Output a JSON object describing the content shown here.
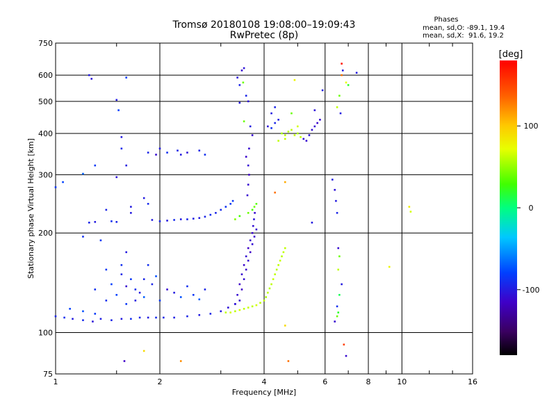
{
  "header": {
    "title_line1": "Tromsø 20180108 19:08:00–19:09:43",
    "title_line2": "RwPretec (8p)"
  },
  "stats": {
    "heading": "Phases",
    "line_o": "mean, sd,O: -89.1, 19.4",
    "line_x": "mean, sd,X:  91.6, 19.2"
  },
  "colorbar": {
    "unit_label": "[deg]",
    "range": [
      -180,
      180
    ],
    "ticks": [
      {
        "value": 100,
        "label": "100"
      },
      {
        "value": 0,
        "label": "0"
      },
      {
        "value": -100,
        "label": "-100"
      }
    ]
  },
  "chart_data": {
    "type": "scatter",
    "xlabel": "Frequency [MHz]",
    "ylabel": "Stationary phase Virtual Height [km]",
    "xscale": "log",
    "yscale": "log",
    "xlim": [
      1,
      16
    ],
    "ylim": [
      75,
      750
    ],
    "grid": true,
    "x_gridlines": [
      2,
      4,
      6,
      8,
      10
    ],
    "y_gridlines": [
      100,
      200,
      300,
      400,
      500,
      600
    ],
    "x_ticks": [
      {
        "value": 1,
        "label": "1"
      },
      {
        "value": 2,
        "label": "2"
      },
      {
        "value": 4,
        "label": "4"
      },
      {
        "value": 6,
        "label": "6"
      },
      {
        "value": 8,
        "label": "8"
      },
      {
        "value": 10,
        "label": "10"
      },
      {
        "value": 16,
        "label": "16"
      }
    ],
    "y_ticks": [
      {
        "value": 75,
        "label": "75"
      },
      {
        "value": 100,
        "label": "100"
      },
      {
        "value": 200,
        "label": "200"
      },
      {
        "value": 300,
        "label": "300"
      },
      {
        "value": 400,
        "label": "400"
      },
      {
        "value": 500,
        "label": "500"
      },
      {
        "value": 600,
        "label": "600"
      },
      {
        "value": 750,
        "label": "750"
      }
    ],
    "points": [
      [
        1.0,
        112,
        -95
      ],
      [
        1.06,
        111,
        -90
      ],
      [
        1.12,
        110,
        -100
      ],
      [
        1.2,
        109,
        -92
      ],
      [
        1.28,
        108,
        -105
      ],
      [
        1.35,
        110,
        -98
      ],
      [
        1.45,
        109,
        -95
      ],
      [
        1.55,
        110,
        -100
      ],
      [
        1.65,
        110,
        -90
      ],
      [
        1.75,
        111,
        -95
      ],
      [
        1.85,
        111,
        -100
      ],
      [
        1.95,
        111,
        -92
      ],
      [
        2.05,
        111,
        -95
      ],
      [
        2.2,
        111,
        -98
      ],
      [
        2.4,
        112,
        -95
      ],
      [
        2.6,
        113,
        -100
      ],
      [
        2.8,
        114,
        -95
      ],
      [
        3.0,
        116,
        -100
      ],
      [
        3.15,
        119,
        -105
      ],
      [
        3.3,
        122,
        -110
      ],
      [
        1.1,
        118,
        -80
      ],
      [
        1.2,
        116,
        -75
      ],
      [
        1.3,
        114,
        -85
      ],
      [
        1.4,
        125,
        -90
      ],
      [
        1.5,
        130,
        -80
      ],
      [
        1.6,
        122,
        -85
      ],
      [
        1.7,
        135,
        -90
      ],
      [
        1.8,
        128,
        -70
      ],
      [
        1.9,
        140,
        -95
      ],
      [
        2.0,
        125,
        -85
      ],
      [
        2.1,
        135,
        -110
      ],
      [
        2.2,
        132,
        -100
      ],
      [
        2.3,
        128,
        -75
      ],
      [
        2.4,
        138,
        -90
      ],
      [
        2.5,
        130,
        -85
      ],
      [
        2.6,
        126,
        -70
      ],
      [
        2.7,
        135,
        -95
      ],
      [
        1.45,
        140,
        -80
      ],
      [
        1.55,
        150,
        -95
      ],
      [
        1.65,
        145,
        -85
      ],
      [
        1.75,
        132,
        -100
      ],
      [
        1.85,
        160,
        -90
      ],
      [
        1.95,
        148,
        -75
      ],
      [
        1.3,
        135,
        -90
      ],
      [
        1.4,
        155,
        -85
      ],
      [
        1.6,
        138,
        -110
      ],
      [
        1.7,
        125,
        -100
      ],
      [
        1.8,
        145,
        -95
      ],
      [
        1.9,
        219,
        -100
      ],
      [
        2.0,
        217,
        -95
      ],
      [
        2.1,
        218,
        -100
      ],
      [
        2.2,
        219,
        -92
      ],
      [
        2.3,
        220,
        -100
      ],
      [
        2.4,
        220,
        -95
      ],
      [
        2.5,
        221,
        -98
      ],
      [
        2.6,
        222,
        -100
      ],
      [
        2.7,
        224,
        -95
      ],
      [
        2.8,
        227,
        -90
      ],
      [
        2.9,
        230,
        -95
      ],
      [
        3.0,
        235,
        -92
      ],
      [
        3.1,
        240,
        -88
      ],
      [
        3.2,
        245,
        -85
      ],
      [
        3.25,
        250,
        -85
      ],
      [
        1.25,
        215,
        -95
      ],
      [
        1.3,
        216,
        -100
      ],
      [
        1.45,
        217,
        -90
      ],
      [
        1.5,
        216,
        -95
      ],
      [
        1.4,
        235,
        -95
      ],
      [
        1.65,
        240,
        -100
      ],
      [
        1.85,
        245,
        -92
      ],
      [
        1.2,
        195,
        -90
      ],
      [
        1.35,
        190,
        -85
      ],
      [
        3.3,
        122,
        -105
      ],
      [
        3.35,
        130,
        -110
      ],
      [
        3.4,
        140,
        -115
      ],
      [
        3.45,
        150,
        -110
      ],
      [
        3.5,
        160,
        -112
      ],
      [
        3.55,
        170,
        -108
      ],
      [
        3.6,
        180,
        -115
      ],
      [
        3.65,
        190,
        -110
      ],
      [
        3.7,
        200,
        -112
      ],
      [
        3.72,
        210,
        -108
      ],
      [
        3.74,
        220,
        -105
      ],
      [
        3.76,
        230,
        -110
      ],
      [
        3.4,
        125,
        -110
      ],
      [
        3.45,
        135,
        -115
      ],
      [
        3.5,
        145,
        -108
      ],
      [
        3.55,
        155,
        -112
      ],
      [
        3.6,
        165,
        -110
      ],
      [
        3.65,
        175,
        -115
      ],
      [
        3.7,
        185,
        -108
      ],
      [
        3.75,
        195,
        -112
      ],
      [
        3.8,
        205,
        -110
      ],
      [
        3.58,
        260,
        -110
      ],
      [
        3.6,
        280,
        -110
      ],
      [
        3.62,
        300,
        -115
      ],
      [
        3.6,
        320,
        -108
      ],
      [
        3.55,
        340,
        -112
      ],
      [
        3.62,
        360,
        -110
      ],
      [
        3.1,
        115,
        60
      ],
      [
        3.2,
        115,
        65
      ],
      [
        3.3,
        116,
        60
      ],
      [
        3.4,
        117,
        65
      ],
      [
        3.5,
        118,
        60
      ],
      [
        3.6,
        119,
        62
      ],
      [
        3.7,
        120,
        60
      ],
      [
        3.8,
        121,
        65
      ],
      [
        3.9,
        123,
        60
      ],
      [
        4.0,
        125,
        60
      ],
      [
        4.05,
        128,
        55
      ],
      [
        4.1,
        132,
        60
      ],
      [
        4.15,
        136,
        58
      ],
      [
        4.2,
        140,
        60
      ],
      [
        4.25,
        145,
        62
      ],
      [
        4.3,
        150,
        60
      ],
      [
        4.35,
        155,
        58
      ],
      [
        4.4,
        160,
        60
      ],
      [
        4.45,
        165,
        62
      ],
      [
        4.5,
        170,
        58
      ],
      [
        4.55,
        175,
        60
      ],
      [
        4.6,
        180,
        60
      ],
      [
        3.7,
        235,
        30
      ],
      [
        3.75,
        240,
        40
      ],
      [
        3.8,
        245,
        35
      ],
      [
        3.6,
        230,
        40
      ],
      [
        3.4,
        225,
        30
      ],
      [
        3.3,
        220,
        45
      ],
      [
        4.1,
        420,
        -105
      ],
      [
        4.2,
        415,
        -90
      ],
      [
        4.3,
        430,
        -95
      ],
      [
        4.4,
        440,
        -100
      ],
      [
        4.5,
        400,
        55
      ],
      [
        4.6,
        395,
        60
      ],
      [
        4.7,
        405,
        58
      ],
      [
        4.8,
        410,
        60
      ],
      [
        4.9,
        395,
        62
      ],
      [
        5.0,
        400,
        55
      ],
      [
        5.1,
        390,
        60
      ],
      [
        5.2,
        385,
        -105
      ],
      [
        5.3,
        380,
        -110
      ],
      [
        5.4,
        395,
        -105
      ],
      [
        5.5,
        410,
        -108
      ],
      [
        5.6,
        420,
        -110
      ],
      [
        5.7,
        430,
        -112
      ],
      [
        5.8,
        440,
        -110
      ],
      [
        4.4,
        380,
        60
      ],
      [
        4.6,
        385,
        62
      ],
      [
        5.0,
        420,
        65
      ],
      [
        4.2,
        460,
        -100
      ],
      [
        4.8,
        460,
        40
      ],
      [
        5.6,
        470,
        -105
      ],
      [
        4.9,
        580,
        75
      ],
      [
        4.3,
        480,
        -95
      ],
      [
        5.9,
        540,
        -100
      ],
      [
        1.5,
        505,
        -100
      ],
      [
        1.52,
        470,
        -80
      ],
      [
        1.55,
        390,
        -100
      ],
      [
        1.55,
        360,
        -92
      ],
      [
        1.6,
        320,
        -100
      ],
      [
        1.5,
        295,
        -105
      ],
      [
        1.65,
        230,
        -100
      ],
      [
        1.6,
        175,
        -100
      ],
      [
        1.55,
        160,
        -90
      ],
      [
        1.58,
        82,
        -115
      ],
      [
        1.3,
        320,
        -85
      ],
      [
        1.25,
        600,
        -100
      ],
      [
        1.27,
        585,
        -105
      ],
      [
        1.2,
        302,
        -70
      ],
      [
        1.05,
        285,
        -80
      ],
      [
        1.0,
        275,
        -85
      ],
      [
        1.6,
        590,
        -80
      ],
      [
        1.85,
        350,
        -95
      ],
      [
        1.95,
        345,
        -110
      ],
      [
        2.0,
        360,
        -100
      ],
      [
        2.1,
        350,
        -90
      ],
      [
        2.25,
        355,
        -95
      ],
      [
        2.3,
        345,
        -100
      ],
      [
        2.4,
        350,
        -105
      ],
      [
        2.6,
        355,
        -95
      ],
      [
        2.7,
        345,
        -90
      ],
      [
        1.8,
        255,
        -100
      ],
      [
        3.35,
        590,
        -105
      ],
      [
        3.4,
        560,
        -95
      ],
      [
        3.45,
        620,
        -110
      ],
      [
        3.5,
        630,
        -105
      ],
      [
        3.48,
        570,
        40
      ],
      [
        3.6,
        500,
        -105
      ],
      [
        3.55,
        520,
        -95
      ],
      [
        3.4,
        495,
        -100
      ],
      [
        3.5,
        435,
        40
      ],
      [
        3.65,
        420,
        -100
      ],
      [
        3.7,
        395,
        -110
      ],
      [
        6.3,
        290,
        -100
      ],
      [
        6.4,
        270,
        -105
      ],
      [
        6.45,
        250,
        -100
      ],
      [
        6.5,
        230,
        -95
      ],
      [
        6.55,
        180,
        -110
      ],
      [
        6.6,
        170,
        40
      ],
      [
        6.55,
        155,
        60
      ],
      [
        6.7,
        140,
        -100
      ],
      [
        6.6,
        130,
        10
      ],
      [
        6.5,
        120,
        -90
      ],
      [
        6.55,
        115,
        20
      ],
      [
        6.5,
        112,
        40
      ],
      [
        6.4,
        108,
        -110
      ],
      [
        6.6,
        520,
        40
      ],
      [
        6.5,
        480,
        60
      ],
      [
        6.65,
        460,
        -100
      ],
      [
        6.7,
        600,
        130
      ],
      [
        6.75,
        620,
        -100
      ],
      [
        6.7,
        650,
        170
      ],
      [
        6.9,
        570,
        70
      ],
      [
        7.0,
        560,
        20
      ],
      [
        7.4,
        610,
        -100
      ],
      [
        6.8,
        92,
        150
      ],
      [
        6.9,
        85,
        -110
      ],
      [
        10.5,
        240,
        80
      ],
      [
        10.6,
        232,
        65
      ],
      [
        9.2,
        158,
        75
      ],
      [
        4.6,
        105,
        90
      ],
      [
        4.7,
        82,
        130
      ],
      [
        4.3,
        265,
        130
      ],
      [
        4.6,
        285,
        110
      ],
      [
        1.8,
        88,
        90
      ],
      [
        2.3,
        82,
        120
      ],
      [
        5.5,
        215,
        -100
      ]
    ]
  }
}
